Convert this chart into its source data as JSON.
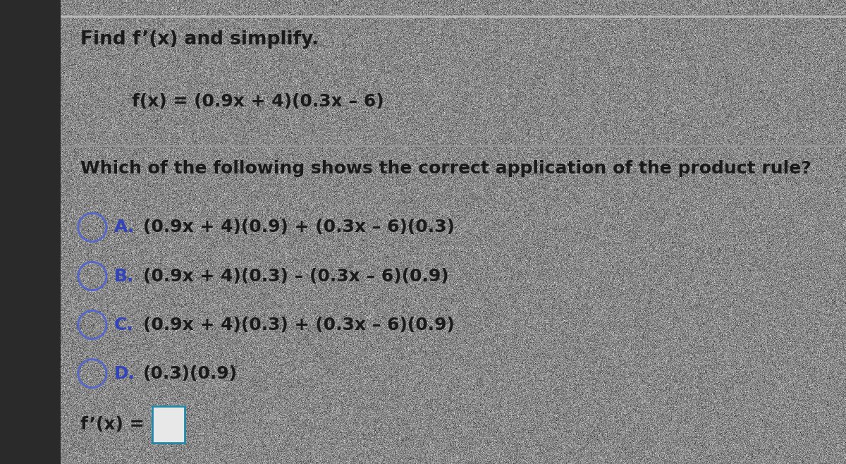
{
  "background_color": "#c8c8c8",
  "panel_color": "#e8e8e8",
  "left_bar_color": "#2a2a2a",
  "title_text": "Find f’(x) and simplify.",
  "function_text": "f(x) = (0.9x + 4)(0.3x – 6)",
  "question_text": "Which of the following shows the correct application of the product rule?",
  "options": [
    {
      "label": "A.",
      "text": "(0.9x + 4)(0.9) + (0.3x – 6)(0.3)"
    },
    {
      "label": "B.",
      "text": "(0.9x + 4)(0.3) – (0.3x – 6)(0.9)"
    },
    {
      "label": "C.",
      "text": "(0.9x + 4)(0.3) + (0.3x – 6)(0.9)"
    },
    {
      "label": "D.",
      "text": "(0.3)(0.9)"
    }
  ],
  "answer_label": "f’(x) =",
  "text_color": "#1a1a1a",
  "label_color": "#3344bb",
  "circle_color": "#5566cc",
  "separator_color": "#999999",
  "answer_box_color": "#2288aa"
}
